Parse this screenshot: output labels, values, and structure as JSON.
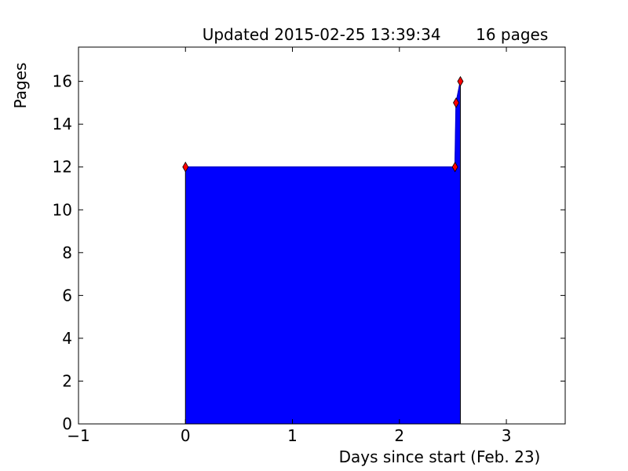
{
  "chart_data": {
    "type": "area",
    "title": "Updated 2015-02-25 13:39:34       16 pages",
    "xlabel": "Days since start (Feb. 23)",
    "ylabel": "Pages",
    "xlim": [
      -1,
      3.55
    ],
    "ylim": [
      0,
      17.6
    ],
    "xticks": [
      -1,
      0,
      1,
      2,
      3
    ],
    "xtick_labels": [
      "−1",
      "0",
      "1",
      "2",
      "3"
    ],
    "yticks": [
      0,
      2,
      4,
      6,
      8,
      10,
      12,
      14,
      16
    ],
    "ytick_labels": [
      "0",
      "2",
      "4",
      "6",
      "8",
      "10",
      "12",
      "14",
      "16"
    ],
    "grid": false,
    "series": [
      {
        "x": [
          0,
          2.52,
          2.53,
          2.57
        ],
        "y": [
          12,
          12,
          15,
          16
        ],
        "fill_color": "#0000ff",
        "marker_color": "#ff0000",
        "marker": "diamond"
      }
    ]
  }
}
